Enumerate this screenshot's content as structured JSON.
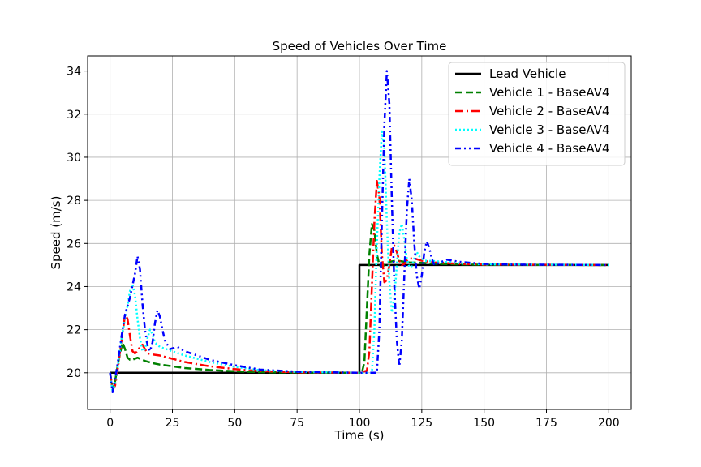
{
  "chart_data": {
    "type": "line",
    "title": "Speed of Vehicles Over Time",
    "xlabel": "Time (s)",
    "ylabel": "Speed (m/s)",
    "xlim": [
      -9,
      209
    ],
    "ylim": [
      18.3,
      34.7
    ],
    "xticks": [
      0,
      25,
      50,
      75,
      100,
      125,
      150,
      175,
      200
    ],
    "yticks": [
      20,
      22,
      24,
      26,
      28,
      30,
      32,
      34
    ],
    "grid": true,
    "legend": "top-right",
    "series": [
      {
        "name": "Lead Vehicle",
        "color": "#000000",
        "dash": "solid",
        "points": [
          [
            0,
            20
          ],
          [
            100,
            20
          ],
          [
            100,
            25
          ],
          [
            200,
            25
          ]
        ]
      },
      {
        "name": "Vehicle 1 - BaseAV4",
        "color": "#008000",
        "dash": "dashed",
        "points": [
          [
            0,
            20
          ],
          [
            1,
            19.3
          ],
          [
            2,
            19.6
          ],
          [
            3,
            20.3
          ],
          [
            4,
            20.9
          ],
          [
            5,
            21.4
          ],
          [
            6,
            21.1
          ],
          [
            7,
            20.7
          ],
          [
            8,
            20.6
          ],
          [
            9,
            20.6
          ],
          [
            10,
            20.65
          ],
          [
            11,
            20.7
          ],
          [
            12,
            20.65
          ],
          [
            14,
            20.55
          ],
          [
            17,
            20.45
          ],
          [
            20,
            20.38
          ],
          [
            25,
            20.3
          ],
          [
            30,
            20.22
          ],
          [
            40,
            20.13
          ],
          [
            50,
            20.07
          ],
          [
            60,
            20.03
          ],
          [
            75,
            20.01
          ],
          [
            100,
            20
          ],
          [
            101,
            20
          ],
          [
            102,
            20.5
          ],
          [
            103,
            23
          ],
          [
            104,
            25.5
          ],
          [
            105,
            26.9
          ],
          [
            106,
            26.6
          ],
          [
            107,
            25.5
          ],
          [
            108,
            25.0
          ],
          [
            109,
            24.9
          ],
          [
            110,
            25.0
          ],
          [
            112,
            25.15
          ],
          [
            115,
            25.2
          ],
          [
            120,
            25.12
          ],
          [
            125,
            25.1
          ],
          [
            130,
            25.06
          ],
          [
            140,
            25.03
          ],
          [
            150,
            25.01
          ],
          [
            200,
            25
          ]
        ]
      },
      {
        "name": "Vehicle 2 - BaseAV4",
        "color": "#ff0000",
        "dash": "dashdot",
        "points": [
          [
            0,
            20
          ],
          [
            1,
            19.2
          ],
          [
            2,
            19.4
          ],
          [
            3,
            20.1
          ],
          [
            4,
            21.0
          ],
          [
            5,
            21.8
          ],
          [
            6,
            22.7
          ],
          [
            7,
            22.5
          ],
          [
            8,
            21.7
          ],
          [
            9,
            21.0
          ],
          [
            10,
            20.9
          ],
          [
            11,
            21.0
          ],
          [
            12,
            21.2
          ],
          [
            13,
            21.3
          ],
          [
            14,
            21.1
          ],
          [
            15,
            20.9
          ],
          [
            17,
            20.85
          ],
          [
            20,
            20.8
          ],
          [
            25,
            20.65
          ],
          [
            30,
            20.5
          ],
          [
            40,
            20.3
          ],
          [
            50,
            20.17
          ],
          [
            60,
            20.08
          ],
          [
            75,
            20.02
          ],
          [
            100,
            20
          ],
          [
            103,
            20.1
          ],
          [
            104,
            21.0
          ],
          [
            105,
            24.0
          ],
          [
            106,
            27.0
          ],
          [
            107,
            28.9
          ],
          [
            108,
            28.2
          ],
          [
            109,
            25.5
          ],
          [
            110,
            24.2
          ],
          [
            111,
            24.3
          ],
          [
            112,
            25.0
          ],
          [
            113,
            25.8
          ],
          [
            114,
            25.9
          ],
          [
            115,
            25.6
          ],
          [
            116,
            25.2
          ],
          [
            117,
            25.0
          ],
          [
            118,
            25.05
          ],
          [
            119,
            25.2
          ],
          [
            120,
            25.3
          ],
          [
            122,
            25.3
          ],
          [
            125,
            25.2
          ],
          [
            130,
            25.12
          ],
          [
            140,
            25.05
          ],
          [
            150,
            25.02
          ],
          [
            200,
            25
          ]
        ]
      },
      {
        "name": "Vehicle 3 - BaseAV4",
        "color": "#00ffff",
        "dash": "dotted",
        "points": [
          [
            0,
            20
          ],
          [
            1,
            19.1
          ],
          [
            2,
            19.5
          ],
          [
            3,
            20.2
          ],
          [
            4,
            21.1
          ],
          [
            5,
            21.9
          ],
          [
            6,
            22.5
          ],
          [
            7,
            23.1
          ],
          [
            8,
            23.8
          ],
          [
            9,
            24.1
          ],
          [
            10,
            23.6
          ],
          [
            11,
            22.5
          ],
          [
            12,
            21.6
          ],
          [
            13,
            21.0
          ],
          [
            14,
            21.1
          ],
          [
            15,
            21.6
          ],
          [
            16,
            22.0
          ],
          [
            17,
            21.8
          ],
          [
            18,
            21.4
          ],
          [
            20,
            21.2
          ],
          [
            25,
            21.0
          ],
          [
            30,
            20.8
          ],
          [
            40,
            20.5
          ],
          [
            50,
            20.28
          ],
          [
            60,
            20.12
          ],
          [
            75,
            20.04
          ],
          [
            100,
            20
          ],
          [
            105,
            20
          ],
          [
            106,
            22.0
          ],
          [
            107,
            26.0
          ],
          [
            108,
            29.0
          ],
          [
            109,
            31.2
          ],
          [
            110,
            30.5
          ],
          [
            111,
            27.0
          ],
          [
            112,
            24.2
          ],
          [
            113,
            22.8
          ],
          [
            114,
            23.5
          ],
          [
            115,
            25.0
          ],
          [
            116,
            26.5
          ],
          [
            117,
            26.9
          ],
          [
            118,
            26.2
          ],
          [
            119,
            25.3
          ],
          [
            120,
            24.9
          ],
          [
            121,
            24.95
          ],
          [
            122,
            25.3
          ],
          [
            123,
            25.6
          ],
          [
            124,
            25.4
          ],
          [
            126,
            25.2
          ],
          [
            130,
            25.18
          ],
          [
            140,
            25.08
          ],
          [
            150,
            25.03
          ],
          [
            200,
            25
          ]
        ]
      },
      {
        "name": "Vehicle 4 - BaseAV4",
        "color": "#0000ff",
        "dash": "dashdotdot",
        "points": [
          [
            0,
            20
          ],
          [
            1,
            19.1
          ],
          [
            2,
            19.7
          ],
          [
            3,
            20.4
          ],
          [
            4,
            21.2
          ],
          [
            5,
            22.0
          ],
          [
            6,
            22.7
          ],
          [
            8,
            23.5
          ],
          [
            10,
            24.6
          ],
          [
            11,
            25.4
          ],
          [
            12,
            24.8
          ],
          [
            13,
            23.2
          ],
          [
            14,
            22.0
          ],
          [
            15,
            21.3
          ],
          [
            16,
            21.0
          ],
          [
            17,
            21.4
          ],
          [
            18,
            22.3
          ],
          [
            19,
            22.9
          ],
          [
            20,
            22.6
          ],
          [
            21,
            22.0
          ],
          [
            22,
            21.5
          ],
          [
            24,
            21.1
          ],
          [
            27,
            21.2
          ],
          [
            30,
            21.0
          ],
          [
            35,
            20.8
          ],
          [
            40,
            20.6
          ],
          [
            50,
            20.35
          ],
          [
            60,
            20.15
          ],
          [
            75,
            20.05
          ],
          [
            100,
            20
          ],
          [
            107,
            20
          ],
          [
            108,
            22.0
          ],
          [
            109,
            27.0
          ],
          [
            110,
            31.5
          ],
          [
            111,
            34.0
          ],
          [
            112,
            32.5
          ],
          [
            113,
            28.0
          ],
          [
            114,
            24.0
          ],
          [
            115,
            21.5
          ],
          [
            116,
            20.3
          ],
          [
            117,
            21.5
          ],
          [
            118,
            24.5
          ],
          [
            119,
            27.5
          ],
          [
            120,
            29.0
          ],
          [
            121,
            28.0
          ],
          [
            122,
            26.0
          ],
          [
            123,
            24.5
          ],
          [
            124,
            23.9
          ],
          [
            125,
            24.5
          ],
          [
            126,
            25.6
          ],
          [
            127,
            26.1
          ],
          [
            128,
            25.8
          ],
          [
            129,
            25.3
          ],
          [
            130,
            25.0
          ],
          [
            132,
            25.1
          ],
          [
            135,
            25.25
          ],
          [
            140,
            25.15
          ],
          [
            150,
            25.05
          ],
          [
            160,
            25.02
          ],
          [
            200,
            25
          ]
        ]
      }
    ]
  }
}
